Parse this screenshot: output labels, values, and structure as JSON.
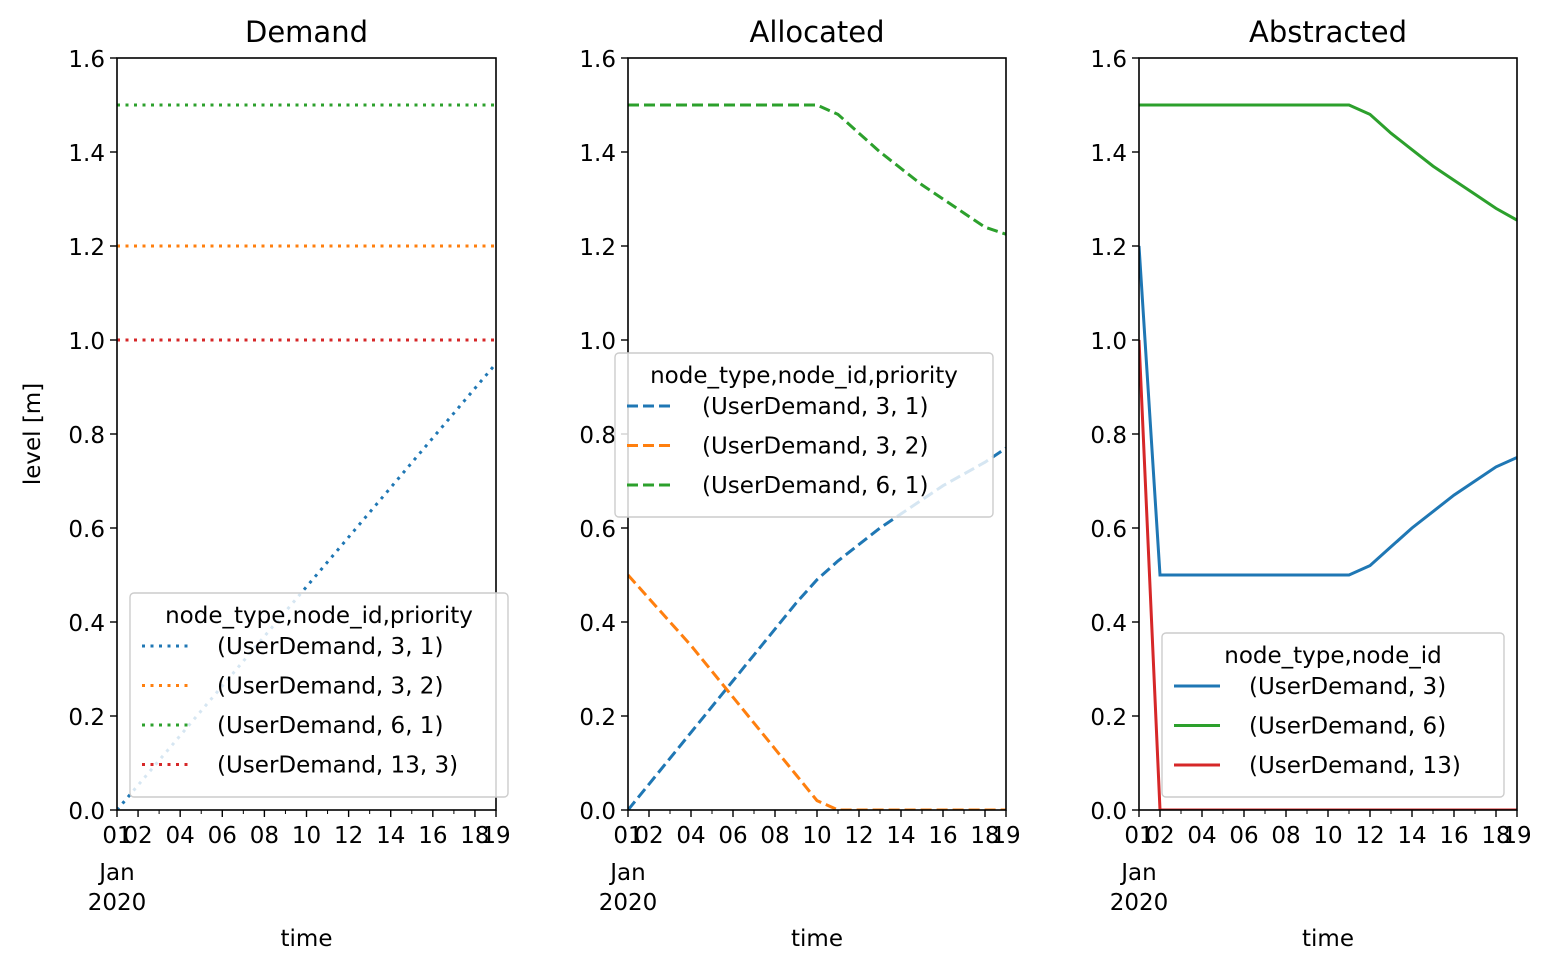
{
  "chart_data": [
    {
      "type": "line",
      "title": "Demand",
      "xlabel": "time",
      "ylabel": "level [m]",
      "xlim": [
        1,
        19
      ],
      "ylim": [
        0,
        1.6
      ],
      "x_tick_labels": [
        {
          "x": 1,
          "label": "01"
        },
        {
          "x": 2,
          "label": "02"
        },
        {
          "x": 4,
          "label": "04"
        },
        {
          "x": 6,
          "label": "06"
        },
        {
          "x": 8,
          "label": "08"
        },
        {
          "x": 10,
          "label": "10"
        },
        {
          "x": 12,
          "label": "12"
        },
        {
          "x": 14,
          "label": "14"
        },
        {
          "x": 16,
          "label": "16"
        },
        {
          "x": 18,
          "label": "18"
        },
        {
          "x": 19,
          "label": "19"
        }
      ],
      "x_tick_sublabels": [
        "Jan",
        "2020"
      ],
      "y_ticks": [
        0,
        0.2,
        0.4,
        0.6,
        0.8,
        1.0,
        1.2,
        1.4,
        1.6
      ],
      "y_tick_labels": [
        "0.0",
        "0.2",
        "0.4",
        "0.6",
        "0.8",
        "1.0",
        "1.2",
        "1.4",
        "1.6"
      ],
      "legend": {
        "title": "node_type,node_id,priority",
        "position": "lower-right"
      },
      "line_style": "dotted",
      "series": [
        {
          "name": "(UserDemand, 3, 1)",
          "color": "#1f77b4",
          "x": [
            1,
            19
          ],
          "y": [
            0.0,
            0.95
          ]
        },
        {
          "name": "(UserDemand, 3, 2)",
          "color": "#ff7f0e",
          "x": [
            1,
            19
          ],
          "y": [
            1.2,
            1.2
          ]
        },
        {
          "name": "(UserDemand, 6, 1)",
          "color": "#2ca02c",
          "x": [
            1,
            19
          ],
          "y": [
            1.5,
            1.5
          ]
        },
        {
          "name": "(UserDemand, 13, 3)",
          "color": "#d62728",
          "x": [
            1,
            19
          ],
          "y": [
            1.0,
            1.0
          ]
        }
      ]
    },
    {
      "type": "line",
      "title": "Allocated",
      "xlabel": "time",
      "ylabel": "",
      "xlim": [
        1,
        19
      ],
      "ylim": [
        0,
        1.6
      ],
      "x_tick_labels": [
        {
          "x": 1,
          "label": "01"
        },
        {
          "x": 2,
          "label": "02"
        },
        {
          "x": 4,
          "label": "04"
        },
        {
          "x": 6,
          "label": "06"
        },
        {
          "x": 8,
          "label": "08"
        },
        {
          "x": 10,
          "label": "10"
        },
        {
          "x": 12,
          "label": "12"
        },
        {
          "x": 14,
          "label": "14"
        },
        {
          "x": 16,
          "label": "16"
        },
        {
          "x": 18,
          "label": "18"
        },
        {
          "x": 19,
          "label": "19"
        }
      ],
      "x_tick_sublabels": [
        "Jan",
        "2020"
      ],
      "y_ticks": [
        0,
        0.2,
        0.4,
        0.6,
        0.8,
        1.0,
        1.2,
        1.4,
        1.6
      ],
      "y_tick_labels": [
        "0.0",
        "0.2",
        "0.4",
        "0.6",
        "0.8",
        "1.0",
        "1.2",
        "1.4",
        "1.6"
      ],
      "legend": {
        "title": "node_type,node_id,priority",
        "position": "center-right"
      },
      "line_style": "dashed",
      "series": [
        {
          "name": "(UserDemand, 3, 1)",
          "color": "#1f77b4",
          "x": [
            1,
            2,
            3,
            4,
            5,
            6,
            7,
            8,
            9,
            10,
            11,
            12,
            13,
            14,
            15,
            16,
            17,
            18,
            19
          ],
          "y": [
            0.0,
            0.055,
            0.11,
            0.165,
            0.22,
            0.275,
            0.33,
            0.385,
            0.44,
            0.49,
            0.53,
            0.565,
            0.6,
            0.63,
            0.66,
            0.69,
            0.715,
            0.74,
            0.77
          ]
        },
        {
          "name": "(UserDemand, 3, 2)",
          "color": "#ff7f0e",
          "x": [
            1,
            2,
            3,
            4,
            5,
            6,
            7,
            8,
            9,
            10,
            11,
            12,
            13,
            14,
            15,
            16,
            17,
            18,
            19
          ],
          "y": [
            0.5,
            0.45,
            0.4,
            0.35,
            0.295,
            0.24,
            0.185,
            0.13,
            0.075,
            0.02,
            0.0,
            0.0,
            0.0,
            0.0,
            0.0,
            0.0,
            0.0,
            0.0,
            0.0
          ]
        },
        {
          "name": "(UserDemand, 6, 1)",
          "color": "#2ca02c",
          "x": [
            1,
            2,
            3,
            4,
            5,
            6,
            7,
            8,
            9,
            10,
            11,
            12,
            13,
            14,
            15,
            16,
            17,
            18,
            19
          ],
          "y": [
            1.5,
            1.5,
            1.5,
            1.5,
            1.5,
            1.5,
            1.5,
            1.5,
            1.5,
            1.5,
            1.48,
            1.44,
            1.4,
            1.365,
            1.33,
            1.3,
            1.27,
            1.24,
            1.225
          ]
        }
      ]
    },
    {
      "type": "line",
      "title": "Abstracted",
      "xlabel": "time",
      "ylabel": "",
      "xlim": [
        1,
        19
      ],
      "ylim": [
        0,
        1.6
      ],
      "x_tick_labels": [
        {
          "x": 1,
          "label": "01"
        },
        {
          "x": 2,
          "label": "02"
        },
        {
          "x": 4,
          "label": "04"
        },
        {
          "x": 6,
          "label": "06"
        },
        {
          "x": 8,
          "label": "08"
        },
        {
          "x": 10,
          "label": "10"
        },
        {
          "x": 12,
          "label": "12"
        },
        {
          "x": 14,
          "label": "14"
        },
        {
          "x": 16,
          "label": "16"
        },
        {
          "x": 18,
          "label": "18"
        },
        {
          "x": 19,
          "label": "19"
        }
      ],
      "x_tick_sublabels": [
        "Jan",
        "2020"
      ],
      "y_ticks": [
        0,
        0.2,
        0.4,
        0.6,
        0.8,
        1.0,
        1.2,
        1.4,
        1.6
      ],
      "y_tick_labels": [
        "0.0",
        "0.2",
        "0.4",
        "0.6",
        "0.8",
        "1.0",
        "1.2",
        "1.4",
        "1.6"
      ],
      "legend": {
        "title": "node_type,node_id",
        "position": "lower-right"
      },
      "line_style": "solid",
      "series": [
        {
          "name": "(UserDemand, 3)",
          "color": "#1f77b4",
          "x": [
            1,
            2,
            3,
            4,
            5,
            6,
            7,
            8,
            9,
            10,
            11,
            12,
            13,
            14,
            15,
            16,
            17,
            18,
            19
          ],
          "y": [
            1.2,
            0.5,
            0.5,
            0.5,
            0.5,
            0.5,
            0.5,
            0.5,
            0.5,
            0.5,
            0.5,
            0.52,
            0.56,
            0.6,
            0.635,
            0.67,
            0.7,
            0.73,
            0.75
          ]
        },
        {
          "name": "(UserDemand, 6)",
          "color": "#2ca02c",
          "x": [
            1,
            2,
            3,
            4,
            5,
            6,
            7,
            8,
            9,
            10,
            11,
            12,
            13,
            14,
            15,
            16,
            17,
            18,
            19
          ],
          "y": [
            1.5,
            1.5,
            1.5,
            1.5,
            1.5,
            1.5,
            1.5,
            1.5,
            1.5,
            1.5,
            1.5,
            1.48,
            1.44,
            1.405,
            1.37,
            1.34,
            1.31,
            1.28,
            1.255
          ]
        },
        {
          "name": "(UserDemand, 13)",
          "color": "#d62728",
          "x": [
            1,
            2,
            3,
            19
          ],
          "y": [
            1.0,
            0.0,
            0.0,
            0.0
          ]
        }
      ]
    }
  ]
}
